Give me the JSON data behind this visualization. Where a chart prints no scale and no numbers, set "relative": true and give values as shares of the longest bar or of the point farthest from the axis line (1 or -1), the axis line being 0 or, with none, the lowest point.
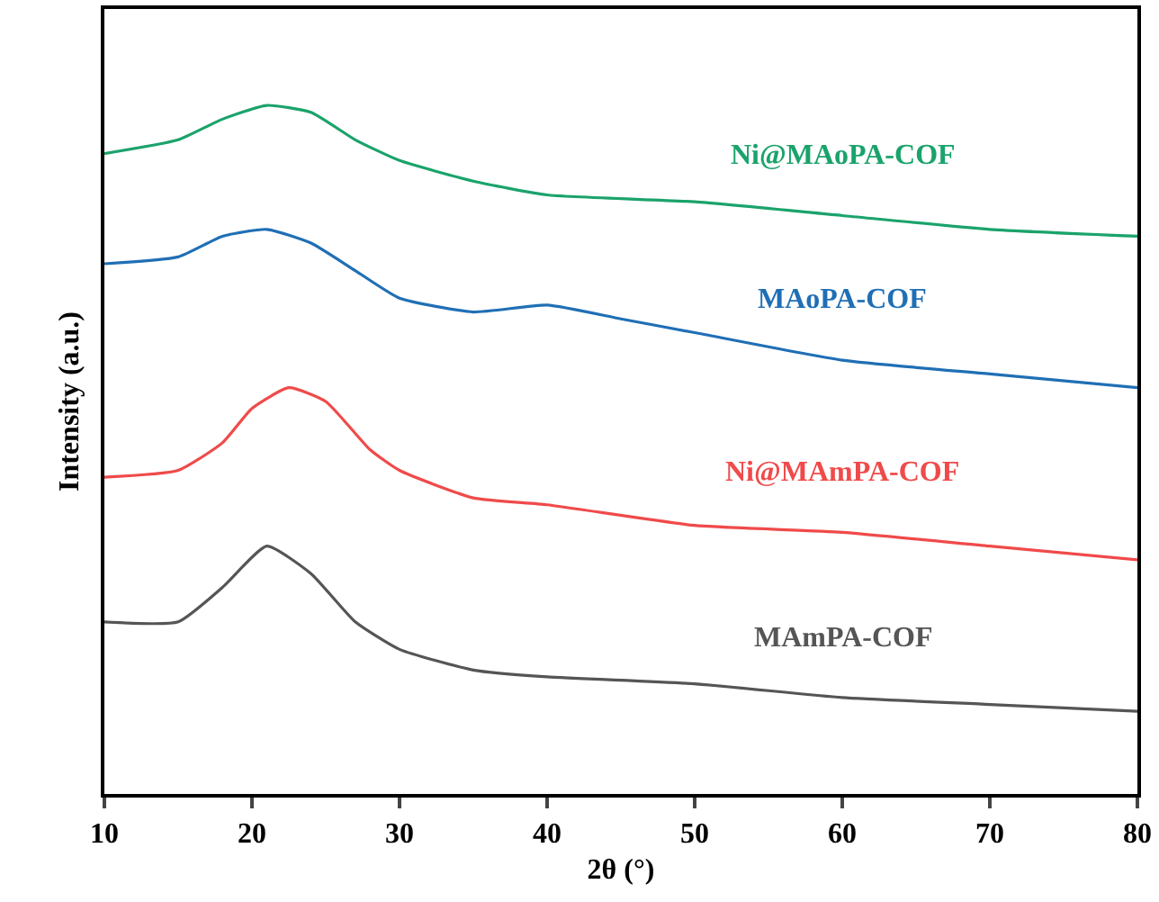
{
  "chart_data": {
    "type": "line",
    "relative": true,
    "xlabel": "2θ (°)",
    "ylabel": "Intensity (a.u.)",
    "xlim": [
      10,
      80
    ],
    "xticks": [
      10,
      20,
      30,
      40,
      50,
      60,
      70,
      80
    ],
    "grid": false,
    "legend": false,
    "series": [
      {
        "name": "Ni@MAoPA-COF",
        "color": "#1aa36b",
        "x": [
          10,
          15,
          18,
          21,
          24,
          27,
          30,
          35,
          40,
          50,
          60,
          70,
          80
        ],
        "values": [
          0.93,
          0.95,
          0.98,
          1.0,
          0.99,
          0.95,
          0.92,
          0.89,
          0.87,
          0.86,
          0.84,
          0.82,
          0.81
        ]
      },
      {
        "name": "MAoPA-COF",
        "color": "#1f6fb5",
        "x": [
          10,
          15,
          18,
          21,
          24,
          27,
          30,
          35,
          40,
          45,
          50,
          60,
          70,
          80
        ],
        "values": [
          0.77,
          0.78,
          0.81,
          0.82,
          0.8,
          0.76,
          0.72,
          0.7,
          0.71,
          0.69,
          0.67,
          0.63,
          0.61,
          0.59
        ]
      },
      {
        "name": "Ni@MAmPA-COF",
        "color": "#f04a4a",
        "x": [
          10,
          15,
          18,
          20,
          22.5,
          25,
          28,
          30,
          35,
          40,
          50,
          60,
          70,
          80
        ],
        "values": [
          0.46,
          0.47,
          0.51,
          0.56,
          0.59,
          0.57,
          0.5,
          0.47,
          0.43,
          0.42,
          0.39,
          0.38,
          0.36,
          0.34
        ]
      },
      {
        "name": "MAmPA-COF",
        "color": "#555555",
        "x": [
          10,
          15,
          18,
          21,
          24,
          27,
          30,
          35,
          40,
          50,
          60,
          70,
          80
        ],
        "values": [
          0.25,
          0.25,
          0.3,
          0.36,
          0.32,
          0.25,
          0.21,
          0.18,
          0.17,
          0.16,
          0.14,
          0.13,
          0.12
        ]
      }
    ]
  }
}
